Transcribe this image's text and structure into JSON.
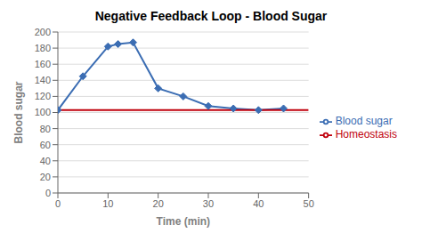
{
  "chart_data": {
    "type": "line",
    "title": "Negative Feedback Loop - Blood Sugar",
    "x_label": "Time (min)",
    "y_label": "Blood sugar",
    "series": [
      {
        "name": "Blood sugar",
        "color": "#3B6DB3",
        "marker": "diamond",
        "x": [
          0,
          5,
          10,
          12,
          15,
          20,
          25,
          30,
          35,
          40,
          45
        ],
        "values": [
          103,
          145,
          182,
          185,
          187,
          130,
          120,
          108,
          105,
          103,
          105
        ]
      },
      {
        "name": "Homeostasis",
        "color": "#C0000C",
        "x": [
          0,
          50
        ],
        "values": [
          103,
          103
        ]
      }
    ],
    "xlim": [
      0,
      50
    ],
    "ylim": [
      0,
      200
    ],
    "xticks": [
      0,
      10,
      20,
      30,
      40,
      50
    ],
    "yticks": [
      0,
      20,
      40,
      60,
      80,
      100,
      120,
      140,
      160,
      180,
      200
    ],
    "grid": true,
    "legend": "right"
  }
}
